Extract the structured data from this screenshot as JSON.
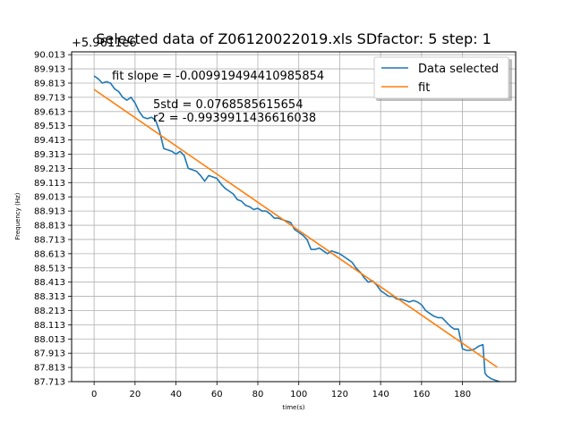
{
  "chart_data": {
    "type": "line",
    "title": "Selected data of Z06120022019.xls SDfactor: 5 step: 1",
    "y_offset_label": "+5.9611e6",
    "xlabel": "time(s)",
    "ylabel": "Frequency (Hz)",
    "xlim": [
      -11,
      206
    ],
    "ylim": [
      87.713,
      90.033
    ],
    "x_ticks": [
      0,
      20,
      40,
      60,
      80,
      100,
      120,
      140,
      160,
      180
    ],
    "y_ticks": [
      "90.013",
      "89.913",
      "89.813",
      "89.713",
      "89.613",
      "89.513",
      "89.413",
      "89.313",
      "89.213",
      "89.113",
      "89.013",
      "88.913",
      "88.813",
      "88.713",
      "88.613",
      "88.513",
      "88.413",
      "88.313",
      "88.213",
      "88.113",
      "88.013",
      "87.913",
      "87.813",
      "87.713"
    ],
    "grid": true,
    "legend_position": "top-right",
    "annotations": [
      "fit slope = -0.009919494410985854",
      "5std = 0.0768585615654",
      "r2 = -0.9939911436616038"
    ],
    "series": [
      {
        "name": "Data selected",
        "color": "#1f77b4",
        "x": [
          0,
          2,
          4,
          6,
          8,
          10,
          12,
          14,
          16,
          18,
          20,
          22,
          24,
          26,
          28,
          30,
          31,
          32,
          34,
          36,
          38,
          40,
          42,
          44,
          46,
          48,
          50,
          52,
          54,
          56,
          58,
          60,
          62,
          64,
          66,
          68,
          70,
          72,
          74,
          76,
          78,
          80,
          82,
          84,
          86,
          88,
          90,
          92,
          94,
          96,
          98,
          100,
          102,
          104,
          106,
          108,
          110,
          112,
          114,
          116,
          118,
          120,
          122,
          124,
          126,
          128,
          130,
          132,
          134,
          136,
          138,
          140,
          142,
          144,
          146,
          148,
          150,
          152,
          154,
          156,
          158,
          160,
          162,
          164,
          166,
          168,
          170,
          172,
          174,
          176,
          178,
          180,
          182,
          184,
          186,
          188,
          190,
          191,
          192,
          194,
          196,
          198
        ],
        "y": [
          89.863,
          89.843,
          89.813,
          89.823,
          89.813,
          89.773,
          89.753,
          89.713,
          89.693,
          89.713,
          89.673,
          89.613,
          89.573,
          89.563,
          89.573,
          89.553,
          89.513,
          89.473,
          89.353,
          89.343,
          89.333,
          89.313,
          89.333,
          89.303,
          89.213,
          89.203,
          89.193,
          89.163,
          89.123,
          89.163,
          89.153,
          89.143,
          89.103,
          89.073,
          89.053,
          89.033,
          88.993,
          88.983,
          88.953,
          88.943,
          88.923,
          88.933,
          88.913,
          88.913,
          88.893,
          88.863,
          88.863,
          88.853,
          88.843,
          88.833,
          88.783,
          88.763,
          88.743,
          88.713,
          88.643,
          88.643,
          88.653,
          88.633,
          88.613,
          88.633,
          88.623,
          88.613,
          88.593,
          88.573,
          88.553,
          88.513,
          88.483,
          88.443,
          88.413,
          88.423,
          88.393,
          88.353,
          88.333,
          88.313,
          88.313,
          88.293,
          88.293,
          88.283,
          88.273,
          88.283,
          88.273,
          88.253,
          88.213,
          88.193,
          88.173,
          88.163,
          88.163,
          88.133,
          88.103,
          88.083,
          88.083,
          87.943,
          87.933,
          87.933,
          87.943,
          87.963,
          87.973,
          87.773,
          87.753,
          87.733,
          87.723,
          87.713
        ]
      },
      {
        "name": "fit",
        "color": "#ff7f0e",
        "x": [
          0,
          197
        ],
        "y": [
          89.768,
          87.814
        ]
      }
    ]
  }
}
